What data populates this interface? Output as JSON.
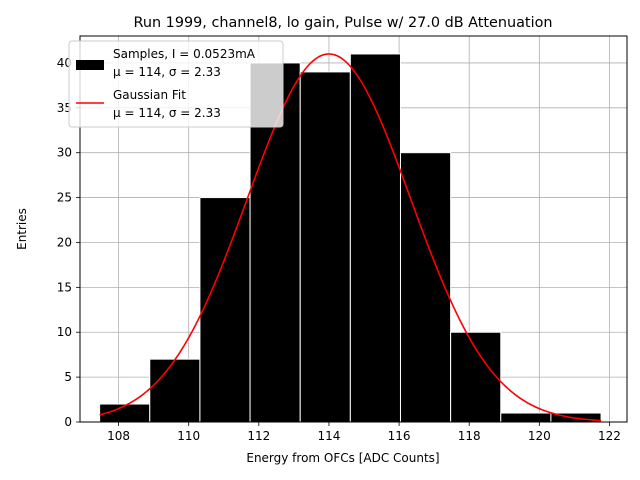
{
  "chart_data": {
    "type": "bar",
    "title": "Run 1999, channel8, lo gain, Pulse w/ 27.0 dB Attenuation",
    "xlabel": "Energy from OFCs [ADC Counts]",
    "ylabel": "Entries",
    "xlim": [
      106.9,
      122.5
    ],
    "ylim": [
      0,
      43
    ],
    "grid": true,
    "legend_position": "top-left",
    "xticks": [
      108,
      110,
      112,
      114,
      116,
      118,
      120,
      122
    ],
    "yticks": [
      0,
      5,
      10,
      15,
      20,
      25,
      30,
      35,
      40
    ],
    "histogram": {
      "bin_edges": [
        107.46,
        108.89,
        110.32,
        111.75,
        113.18,
        114.61,
        116.04,
        117.47,
        118.9,
        120.33,
        121.76
      ],
      "counts": [
        2,
        7,
        25,
        40,
        39,
        41,
        30,
        10,
        1,
        1
      ],
      "color": "#000000",
      "edgecolor": "#ffffff"
    },
    "fit": {
      "type": "gaussian",
      "mu": 114.0,
      "sigma": 2.33,
      "amplitude": 41,
      "x_range": [
        107.46,
        121.76
      ],
      "color": "#ff0000"
    },
    "legend": [
      {
        "line1": "Samples, I = 0.0523mA",
        "line2": "μ = 114, σ = 2.33",
        "marker": "patch",
        "color": "#000000"
      },
      {
        "line1": "Gaussian Fit",
        "line2": "μ = 114, σ = 2.33",
        "marker": "line",
        "color": "#ff0000"
      }
    ]
  }
}
